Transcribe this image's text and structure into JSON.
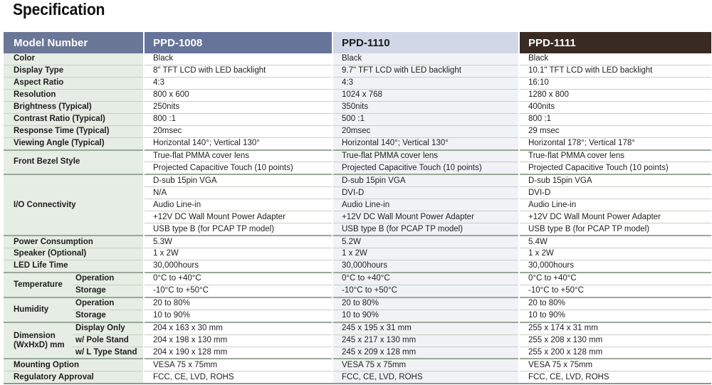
{
  "page": {
    "title": "Specification"
  },
  "table": {
    "headers": [
      "Model Number",
      "PPD-1008",
      "PPD-1110",
      "PPD-1111"
    ],
    "rows": [
      {
        "label": "Color",
        "values": [
          "Black",
          "Black",
          "Black"
        ]
      },
      {
        "label": "Display Type",
        "values": [
          "8\" TFT LCD with LED backlight",
          "9.7\" TFT LCD with LED backlight",
          "10.1\" TFT LCD with LED backlight"
        ]
      },
      {
        "label": "Aspect Ratio",
        "values": [
          "4:3",
          "4:3",
          "16:10"
        ]
      },
      {
        "label": "Resolution",
        "values": [
          "800 x 600",
          "1024 x 768",
          "1280 x 800"
        ]
      },
      {
        "label": "Brightness (Typical)",
        "values": [
          "250nits",
          "350nits",
          "400nits"
        ]
      },
      {
        "label": "Contrast Ratio (Typical)",
        "values": [
          "800 :1",
          "500 :1",
          "800 :1"
        ]
      },
      {
        "label": "Response Time (Typical)",
        "values": [
          "20msec",
          "20msec",
          "29 msec"
        ]
      },
      {
        "label": "Viewing Angle (Typical)",
        "values": [
          "Horizontal 140°; Vertical 130°",
          "Horizontal 140°; Vertical 130°",
          "Horizontal 178°; Vertical 178°"
        ]
      },
      {
        "label": "Front Bezel Style",
        "values": [
          "True-flat PMMA cover lens",
          "True-flat PMMA cover lens",
          "True-flat PMMA cover lens"
        ]
      },
      {
        "label": "",
        "values": [
          "Projected Capacitive Touch (10 points)",
          "Projected Capacitive Touch (10 points)",
          "Projected Capacitive Touch (10 points)"
        ]
      },
      {
        "label": "I/O Connectivity",
        "values": [
          "D-sub 15pin VGA",
          "D-sub 15pin VGA",
          "D-sub 15pin VGA"
        ]
      },
      {
        "label": "",
        "values": [
          "N/A",
          "DVI-D",
          "DVI-D"
        ]
      },
      {
        "label": "",
        "values": [
          "Audio Line-in",
          "Audio Line-in",
          "Audio Line-in"
        ]
      },
      {
        "label": "",
        "values": [
          "+12V DC Wall Mount Power Adapter",
          "+12V DC Wall Mount Power Adapter",
          "+12V DC Wall Mount Power Adapter"
        ]
      },
      {
        "label": "",
        "values": [
          "USB type B (for PCAP TP model)",
          "USB type B (for PCAP TP model)",
          "USB type B (for PCAP TP model)"
        ]
      },
      {
        "label": "Power Consumption",
        "values": [
          "5.3W",
          "5.2W",
          "5.4W"
        ]
      },
      {
        "label": "Speaker (Optional)",
        "values": [
          "1 x 2W",
          "1 x 2W",
          "1 x 2W"
        ]
      },
      {
        "label": "LED Life Time",
        "values": [
          "30,000hours",
          "30,000hours",
          "30,000hours"
        ]
      },
      {
        "label": "Temperature",
        "sub": "Operation",
        "values": [
          "0°C to +40°C",
          "0°C to +40°C",
          "0°C to +40°C"
        ]
      },
      {
        "label": "",
        "sub": "Storage",
        "values": [
          "-10°C to +50°C",
          "-10°C to +50°C",
          "-10°C to +50°C"
        ]
      },
      {
        "label": "Humidity",
        "sub": "Operation",
        "values": [
          "20 to 80%",
          "20 to 80%",
          "20 to 80%"
        ]
      },
      {
        "label": "",
        "sub": "Storage",
        "values": [
          "10 to 90%",
          "10 to 90%",
          "10 to 90%"
        ]
      },
      {
        "label": "Dimension (WxHxD) mm",
        "sub": "Display Only",
        "values": [
          "204 x 163 x 30 mm",
          "245 x 195 x 31 mm",
          "255 x 174 x 31 mm"
        ]
      },
      {
        "label": "",
        "sub": "w/ Pole Stand",
        "values": [
          "204 x 198 x 130 mm",
          "245 x 217 x 130 mm",
          "255 x 208 x 130 mm"
        ]
      },
      {
        "label": "",
        "sub": "w/ L Type Stand",
        "values": [
          "204 x 190 x 128 mm",
          "245 x 209 x 128 mm",
          "255 x 200 x 128 mm"
        ]
      },
      {
        "label": "Mounting Option",
        "values": [
          "VESA 75 x 75mm",
          "VESA 75 x 75mm",
          "VESA 75 x 75mm"
        ]
      },
      {
        "label": "Regulatory Approval",
        "values": [
          "FCC, CE, LVD, ROHS",
          "FCC, CE, LVD, ROHS",
          "FCC, CE, LVD, ROHS"
        ]
      }
    ]
  },
  "colors": {
    "label_bg": "#e6ede4",
    "header_model_label": "#6b7796",
    "header_ppd_1008": "#67749a",
    "header_ppd_1110": "#d2d7e8",
    "header_ppd_1111": "#3a2a24"
  }
}
